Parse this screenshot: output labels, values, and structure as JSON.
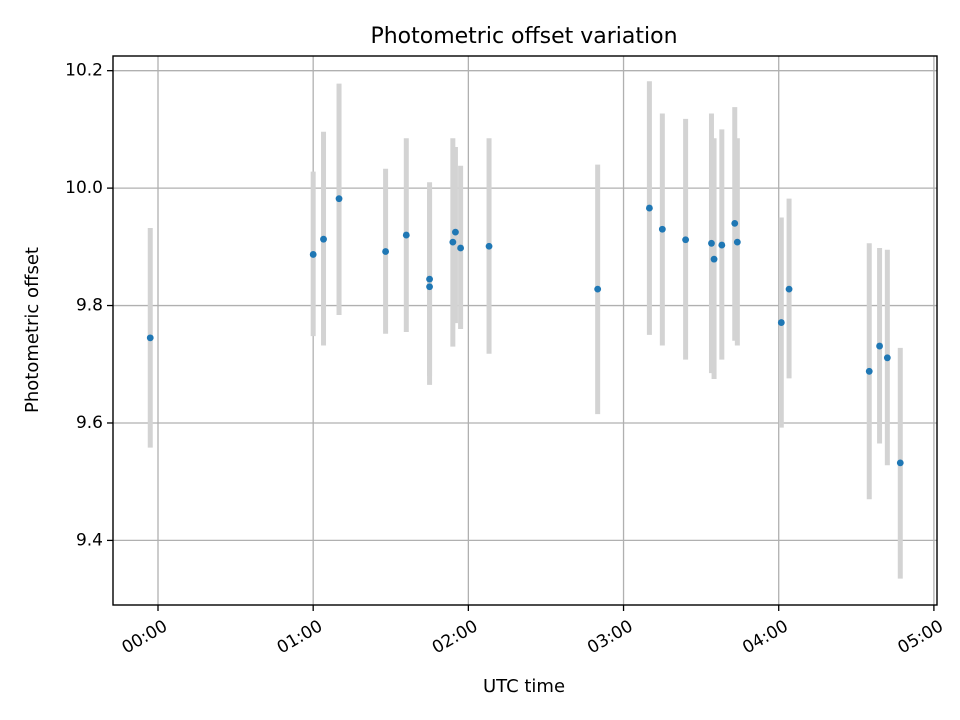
{
  "chart_data": {
    "type": "scatter",
    "title": "Photometric offset variation",
    "xlabel": "UTC time",
    "ylabel": "Photometric offset",
    "x_unit": "hours_utc",
    "xlim": [
      -0.29,
      5.02
    ],
    "ylim": [
      9.29,
      10.225
    ],
    "xticks": [
      {
        "value": 0,
        "label": "00:00"
      },
      {
        "value": 1,
        "label": "01:00"
      },
      {
        "value": 2,
        "label": "02:00"
      },
      {
        "value": 3,
        "label": "03:00"
      },
      {
        "value": 4,
        "label": "04:00"
      },
      {
        "value": 5,
        "label": "05:00"
      }
    ],
    "yticks": [
      {
        "value": 9.4,
        "label": "9.4"
      },
      {
        "value": 9.6,
        "label": "9.6"
      },
      {
        "value": 9.8,
        "label": "9.8"
      },
      {
        "value": 10.0,
        "label": "10.0"
      },
      {
        "value": 10.2,
        "label": "10.2"
      }
    ],
    "grid": true,
    "x_tick_rotation_deg": 30,
    "colors": {
      "marker": "#1f77b4",
      "errorbar": "#d3d3d3"
    },
    "points": [
      {
        "t": "23:57",
        "y": 9.745,
        "lo": 9.558,
        "hi": 9.932
      },
      {
        "t": "01:00",
        "y": 9.887,
        "lo": 9.748,
        "hi": 10.028
      },
      {
        "t": "01:04",
        "y": 9.913,
        "lo": 9.732,
        "hi": 10.096
      },
      {
        "t": "01:10",
        "y": 9.982,
        "lo": 9.784,
        "hi": 10.178
      },
      {
        "t": "01:28",
        "y": 9.892,
        "lo": 9.752,
        "hi": 10.033
      },
      {
        "t": "01:36",
        "y": 9.92,
        "lo": 9.755,
        "hi": 10.085
      },
      {
        "t": "01:45",
        "y": 9.845,
        "lo": 9.68,
        "hi": 10.01
      },
      {
        "t": "01:45",
        "y": 9.832,
        "lo": 9.665,
        "hi": 9.995
      },
      {
        "t": "01:54",
        "y": 9.908,
        "lo": 9.73,
        "hi": 10.085
      },
      {
        "t": "01:55",
        "y": 9.925,
        "lo": 9.77,
        "hi": 10.07
      },
      {
        "t": "01:57",
        "y": 9.898,
        "lo": 9.76,
        "hi": 10.038
      },
      {
        "t": "02:08",
        "y": 9.901,
        "lo": 9.718,
        "hi": 10.085
      },
      {
        "t": "02:50",
        "y": 9.828,
        "lo": 9.615,
        "hi": 10.04
      },
      {
        "t": "03:10",
        "y": 9.966,
        "lo": 9.75,
        "hi": 10.182
      },
      {
        "t": "03:15",
        "y": 9.93,
        "lo": 9.732,
        "hi": 10.127
      },
      {
        "t": "03:24",
        "y": 9.912,
        "lo": 9.708,
        "hi": 10.118
      },
      {
        "t": "03:34",
        "y": 9.906,
        "lo": 9.685,
        "hi": 10.127
      },
      {
        "t": "03:35",
        "y": 9.879,
        "lo": 9.675,
        "hi": 10.085
      },
      {
        "t": "03:38",
        "y": 9.903,
        "lo": 9.708,
        "hi": 10.1
      },
      {
        "t": "03:43",
        "y": 9.94,
        "lo": 9.74,
        "hi": 10.138
      },
      {
        "t": "03:44",
        "y": 9.908,
        "lo": 9.732,
        "hi": 10.085
      },
      {
        "t": "04:01",
        "y": 9.771,
        "lo": 9.592,
        "hi": 9.95
      },
      {
        "t": "04:04",
        "y": 9.828,
        "lo": 9.676,
        "hi": 9.982
      },
      {
        "t": "04:35",
        "y": 9.688,
        "lo": 9.47,
        "hi": 9.906
      },
      {
        "t": "04:39",
        "y": 9.731,
        "lo": 9.565,
        "hi": 9.898
      },
      {
        "t": "04:42",
        "y": 9.711,
        "lo": 9.528,
        "hi": 9.895
      },
      {
        "t": "04:47",
        "y": 9.532,
        "lo": 9.335,
        "hi": 9.728
      }
    ]
  }
}
